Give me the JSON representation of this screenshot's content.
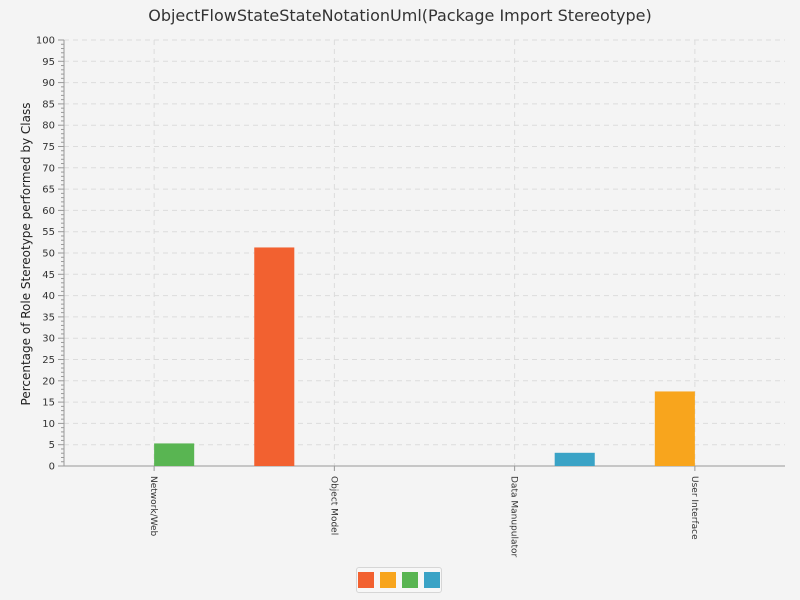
{
  "chart_data": {
    "type": "bar",
    "title": "ObjectFlowStateStateNotationUml(Package Import Stereotype)",
    "xlabel": "",
    "ylabel": "Percentage of Role Stereotype performed by Class",
    "ylim": [
      0,
      100
    ],
    "y_ticks": [
      0,
      5,
      10,
      15,
      20,
      25,
      30,
      35,
      40,
      45,
      50,
      55,
      60,
      65,
      70,
      75,
      80,
      85,
      90,
      95,
      100
    ],
    "grid": true,
    "categories": [
      "Network/Web",
      "Object Model",
      "Data Manupulator",
      "User Interface"
    ],
    "series": [
      {
        "name": "",
        "color": "#f26130",
        "values": [
          0,
          51.3,
          0,
          0
        ]
      },
      {
        "name": "",
        "color": "#f8a51d",
        "values": [
          0,
          0,
          0,
          17.5
        ]
      },
      {
        "name": "",
        "color": "#59b552",
        "values": [
          5.3,
          0,
          0,
          0
        ]
      },
      {
        "name": "",
        "color": "#3aa3c6",
        "values": [
          0,
          0,
          3.1,
          0
        ]
      }
    ],
    "legend_position": "bottom"
  }
}
